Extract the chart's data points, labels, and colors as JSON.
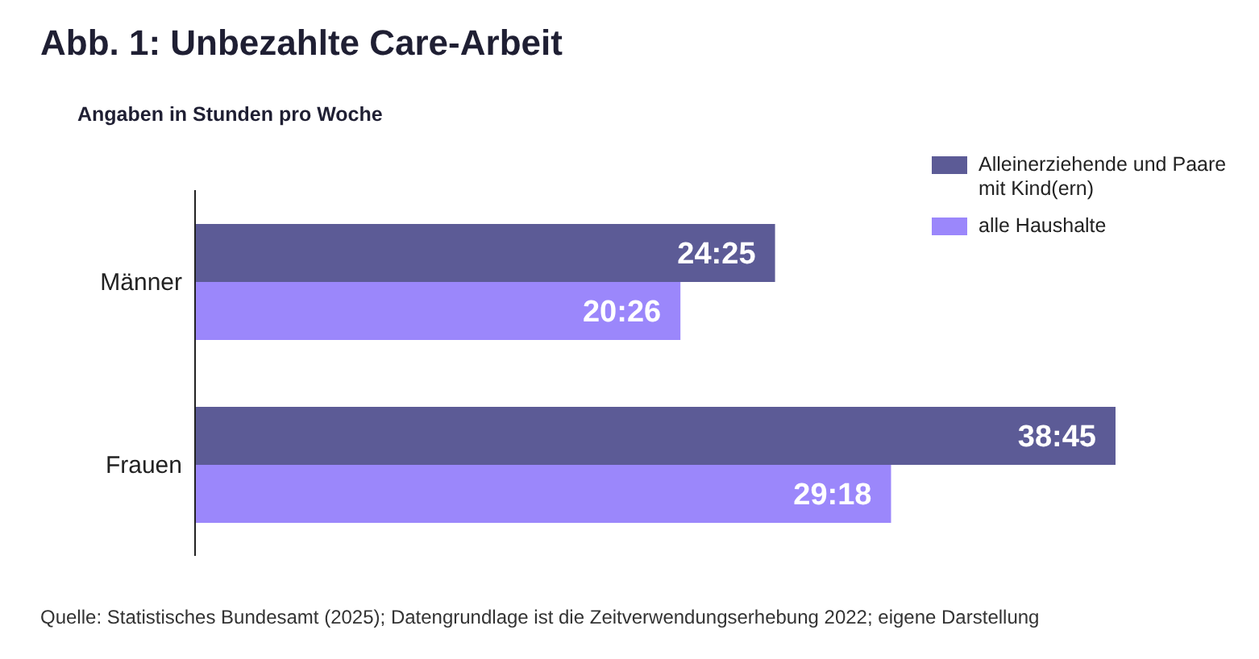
{
  "chart_data": {
    "type": "bar",
    "orientation": "horizontal",
    "title": "Abb. 1: Unbezahlte Care-Arbeit",
    "subtitle": "Angaben in Stunden pro Woche",
    "categories": [
      "Männer",
      "Frauen"
    ],
    "series": [
      {
        "name": "Alleinerziehende und Paare mit Kind(ern)",
        "color": "#5c5b96",
        "values": [
          24.4167,
          38.75
        ],
        "value_labels": [
          "24:25",
          "38:45"
        ]
      },
      {
        "name": "alle Haushalte",
        "color": "#9b87fb",
        "values": [
          20.4333,
          29.3
        ],
        "value_labels": [
          "20:26",
          "29:18"
        ]
      }
    ],
    "legend": "top right",
    "grid": false,
    "annotations": [
      "Quelle: Statistisches Bundesamt (2025); Datengrundlage ist die Zeitverwendungserhebung 2022; eigene Darstellung"
    ]
  }
}
